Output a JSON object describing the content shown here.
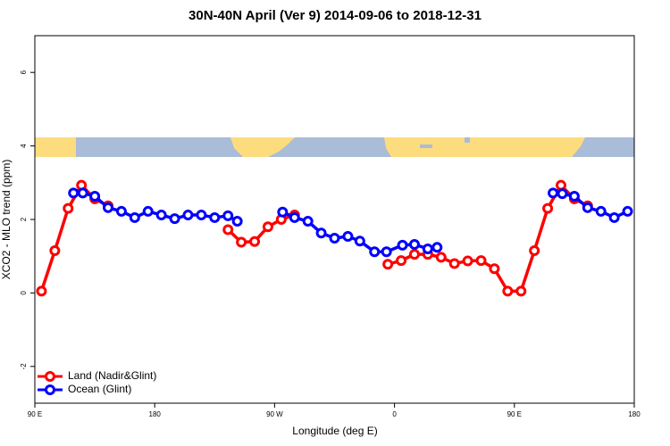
{
  "chart_data": {
    "type": "line",
    "title": "30N-40N April (Ver 9)   2014-09-06 to 2018-12-31",
    "x_label": "Longitude (deg E)",
    "y_label": "XCO2 - MLO trend (ppm)",
    "xlim": [
      90,
      540
    ],
    "ylim": [
      -3,
      7
    ],
    "xticks": [
      {
        "value": 90,
        "label": "90 E"
      },
      {
        "value": 180,
        "label": "180"
      },
      {
        "value": 270,
        "label": "90 W"
      },
      {
        "value": 360,
        "label": "0"
      },
      {
        "value": 450,
        "label": "90 E"
      },
      {
        "value": 540,
        "label": "180"
      }
    ],
    "yticks": [
      -2,
      0,
      2,
      4,
      6
    ],
    "legend": "bottom-left",
    "series": [
      {
        "name": "Land (Nadir&Glint)",
        "color": "#ff0000",
        "x": [
          95,
          105,
          115,
          125,
          135,
          145,
          null,
          235,
          245,
          255,
          265,
          275,
          285,
          null,
          355,
          365,
          375,
          385,
          395,
          405,
          415,
          425,
          435,
          445,
          455,
          465,
          475,
          485,
          495,
          505
        ],
        "values": [
          0.05,
          1.15,
          2.3,
          2.93,
          2.56,
          2.37,
          null,
          1.72,
          1.38,
          1.4,
          1.8,
          2.0,
          2.12,
          null,
          0.78,
          0.88,
          1.05,
          1.05,
          0.97,
          0.8,
          0.87,
          0.88,
          0.66,
          0.05,
          0.05,
          1.15,
          2.3,
          2.93,
          2.56,
          2.37
        ]
      },
      {
        "name": "Ocean (Glint)",
        "color": "#0000ff",
        "x": [
          119,
          126,
          135,
          145,
          155,
          165,
          175,
          185,
          195,
          205,
          215,
          225,
          235,
          242,
          null,
          276,
          285,
          295,
          305,
          315,
          325,
          334,
          345,
          354,
          366,
          375,
          385,
          392,
          null,
          479,
          486,
          495,
          505,
          515,
          525,
          535
        ],
        "values": [
          2.72,
          2.72,
          2.63,
          2.32,
          2.22,
          2.05,
          2.22,
          2.12,
          2.02,
          2.12,
          2.12,
          2.05,
          2.1,
          1.95,
          null,
          2.2,
          2.05,
          1.95,
          1.63,
          1.49,
          1.54,
          1.41,
          1.12,
          1.12,
          1.3,
          1.32,
          1.2,
          1.24,
          null,
          2.72,
          2.7,
          2.63,
          2.32,
          2.22,
          2.05,
          2.22
        ]
      }
    ]
  }
}
